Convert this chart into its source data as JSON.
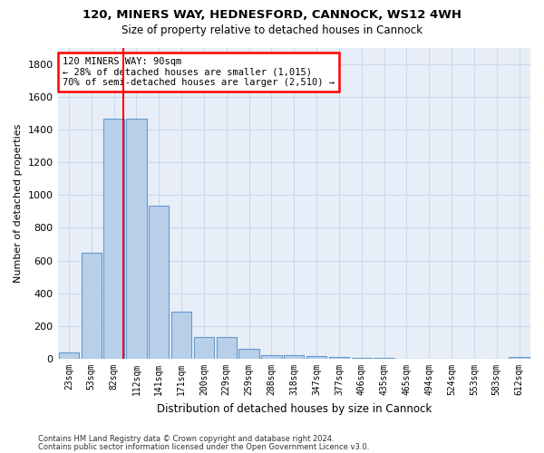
{
  "title_line1": "120, MINERS WAY, HEDNESFORD, CANNOCK, WS12 4WH",
  "title_line2": "Size of property relative to detached houses in Cannock",
  "xlabel": "Distribution of detached houses by size in Cannock",
  "ylabel": "Number of detached properties",
  "bar_labels": [
    "23sqm",
    "53sqm",
    "82sqm",
    "112sqm",
    "141sqm",
    "171sqm",
    "200sqm",
    "229sqm",
    "259sqm",
    "288sqm",
    "318sqm",
    "347sqm",
    "377sqm",
    "406sqm",
    "435sqm",
    "465sqm",
    "494sqm",
    "524sqm",
    "553sqm",
    "583sqm",
    "612sqm"
  ],
  "bar_values": [
    40,
    648,
    1467,
    1464,
    935,
    290,
    135,
    135,
    60,
    25,
    20,
    15,
    12,
    8,
    5,
    3,
    2,
    2,
    1,
    0,
    12
  ],
  "bar_color": "#b8cfea",
  "bar_edge_color": "#6699cc",
  "vline_x_index": 2.42,
  "annotation_line1": "120 MINERS WAY: 90sqm",
  "annotation_line2": "← 28% of detached houses are smaller (1,015)",
  "annotation_line3": "70% of semi-detached houses are larger (2,510) →",
  "annotation_box_facecolor": "white",
  "annotation_box_edgecolor": "red",
  "vline_color": "red",
  "ylim": [
    0,
    1900
  ],
  "yticks": [
    0,
    200,
    400,
    600,
    800,
    1000,
    1200,
    1400,
    1600,
    1800
  ],
  "grid_color": "#c8d8ec",
  "background_color": "#e8eef8",
  "footer_line1": "Contains HM Land Registry data © Crown copyright and database right 2024.",
  "footer_line2": "Contains public sector information licensed under the Open Government Licence v3.0."
}
